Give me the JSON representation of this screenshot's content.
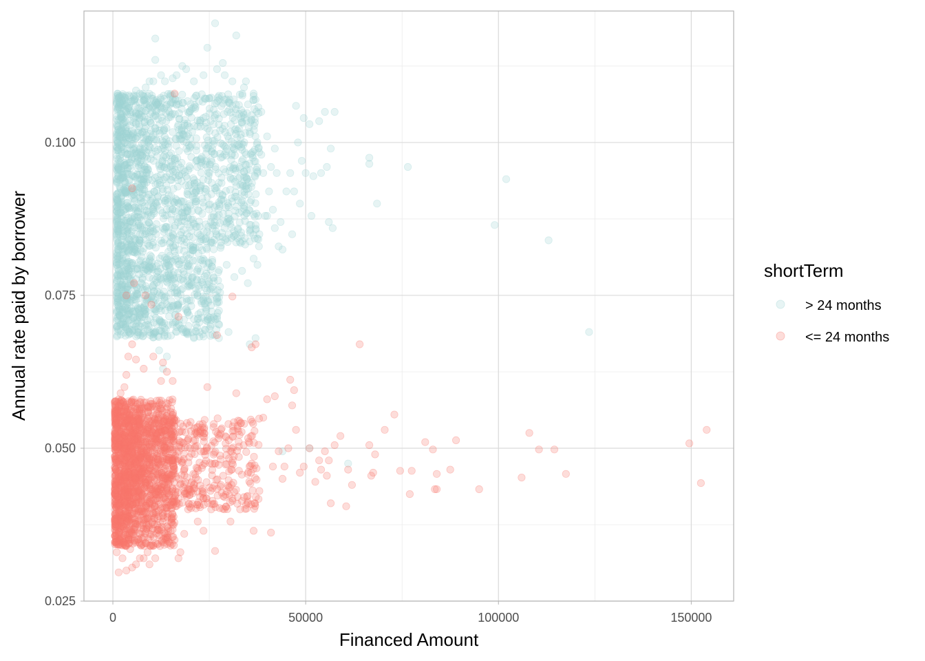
{
  "chart_data": {
    "type": "scatter",
    "xlabel": "Financed Amount",
    "ylabel": "Annual rate paid by borrower",
    "xlim": [
      -7500,
      161000
    ],
    "ylim": [
      0.025,
      0.1215
    ],
    "x_ticks": [
      0,
      50000,
      100000,
      150000
    ],
    "x_tick_labels": [
      "0",
      "50000",
      "100000",
      "150000"
    ],
    "y_ticks": [
      0.025,
      0.05,
      0.075,
      0.1
    ],
    "y_tick_labels": [
      "0.025",
      "0.050",
      "0.075",
      "0.100"
    ],
    "grid": true,
    "legend": {
      "title": "shortTerm",
      "position": "right"
    },
    "point_opacity": 0.25,
    "series": [
      {
        "name": "> 24 months",
        "color": "#9ed3d3",
        "dense_clusters": [
          {
            "x_range": [
              1000,
              38000
            ],
            "y_range": [
              0.083,
              0.108
            ]
          },
          {
            "x_range": [
              1000,
              28000
            ],
            "y_range": [
              0.068,
              0.083
            ]
          }
        ],
        "points": [
          [
            26500,
            0.1195
          ],
          [
            32000,
            0.1175
          ],
          [
            11000,
            0.117
          ],
          [
            24500,
            0.1155
          ],
          [
            28500,
            0.113
          ],
          [
            11000,
            0.1135
          ],
          [
            18000,
            0.1125
          ],
          [
            15500,
            0.1105
          ],
          [
            10500,
            0.11
          ],
          [
            31000,
            0.11
          ],
          [
            47500,
            0.106
          ],
          [
            55000,
            0.105
          ],
          [
            57500,
            0.105
          ],
          [
            53500,
            0.1035
          ],
          [
            49500,
            0.104
          ],
          [
            51000,
            0.103
          ],
          [
            48000,
            0.1
          ],
          [
            56500,
            0.099
          ],
          [
            46000,
            0.095
          ],
          [
            50000,
            0.095
          ],
          [
            49000,
            0.097
          ],
          [
            54000,
            0.095
          ],
          [
            55500,
            0.096
          ],
          [
            52000,
            0.0945
          ],
          [
            47000,
            0.092
          ],
          [
            41000,
            0.096
          ],
          [
            42500,
            0.095
          ],
          [
            45000,
            0.092
          ],
          [
            40000,
            0.088
          ],
          [
            48500,
            0.09
          ],
          [
            51500,
            0.088
          ],
          [
            56000,
            0.087
          ],
          [
            57000,
            0.086
          ],
          [
            46500,
            0.085
          ],
          [
            42000,
            0.086
          ],
          [
            43000,
            0.083
          ],
          [
            44000,
            0.0825
          ],
          [
            66500,
            0.0975
          ],
          [
            66500,
            0.0965
          ],
          [
            76500,
            0.096
          ],
          [
            68500,
            0.09
          ],
          [
            102000,
            0.094
          ],
          [
            99000,
            0.0865
          ],
          [
            113000,
            0.084
          ],
          [
            123500,
            0.069
          ],
          [
            37000,
            0.068
          ],
          [
            35500,
            0.067
          ],
          [
            30000,
            0.069
          ],
          [
            27500,
            0.068
          ],
          [
            25000,
            0.0695
          ],
          [
            22500,
            0.069
          ],
          [
            19500,
            0.069
          ],
          [
            14000,
            0.065
          ],
          [
            12000,
            0.066
          ],
          [
            13000,
            0.063
          ],
          [
            4000,
            0.078
          ],
          [
            4500,
            0.077
          ],
          [
            3500,
            0.074
          ],
          [
            4000,
            0.071
          ],
          [
            5000,
            0.07
          ],
          [
            6500,
            0.069
          ],
          [
            8000,
            0.069
          ],
          [
            9500,
            0.069
          ],
          [
            11000,
            0.069
          ],
          [
            16500,
            0.069
          ],
          [
            21000,
            0.068
          ],
          [
            25500,
            0.071
          ],
          [
            24000,
            0.073
          ],
          [
            22000,
            0.075
          ],
          [
            20500,
            0.078
          ],
          [
            26000,
            0.076
          ],
          [
            29500,
            0.08
          ],
          [
            31500,
            0.078
          ],
          [
            33500,
            0.079
          ],
          [
            35000,
            0.077
          ],
          [
            37500,
            0.08
          ],
          [
            36500,
            0.081
          ],
          [
            38000,
            0.085
          ],
          [
            39500,
            0.088
          ],
          [
            41500,
            0.089
          ],
          [
            43500,
            0.087
          ],
          [
            40500,
            0.092
          ],
          [
            39000,
            0.095
          ],
          [
            38500,
            0.098
          ],
          [
            42000,
            0.099
          ],
          [
            40000,
            0.101
          ],
          [
            38500,
            0.105
          ],
          [
            37000,
            0.107
          ],
          [
            36500,
            0.108
          ],
          [
            34000,
            0.109
          ],
          [
            34500,
            0.11
          ],
          [
            29000,
            0.111
          ],
          [
            27000,
            0.112
          ],
          [
            23500,
            0.111
          ],
          [
            21000,
            0.11
          ],
          [
            19000,
            0.112
          ],
          [
            16500,
            0.111
          ],
          [
            13500,
            0.11
          ],
          [
            12500,
            0.111
          ],
          [
            9500,
            0.11
          ],
          [
            8500,
            0.109
          ],
          [
            7000,
            0.108
          ],
          [
            6000,
            0.1085
          ],
          [
            5500,
            0.107
          ],
          [
            3500,
            0.105
          ],
          [
            2500,
            0.103
          ],
          [
            2000,
            0.101
          ],
          [
            1500,
            0.099
          ],
          [
            1500,
            0.096
          ],
          [
            2000,
            0.094
          ],
          [
            1500,
            0.09
          ],
          [
            1000,
            0.087
          ],
          [
            1500,
            0.085
          ],
          [
            2000,
            0.083
          ],
          [
            2500,
            0.081
          ],
          [
            61000,
            0.0475
          ],
          [
            44000,
            0.0495
          ],
          [
            51000,
            0.05
          ]
        ]
      },
      {
        "name": "<= 24 months",
        "color": "#f8766d",
        "dense_clusters": [
          {
            "x_range": [
              500,
              16000
            ],
            "y_range": [
              0.034,
              0.058
            ]
          },
          {
            "x_range": [
              3000,
              38000
            ],
            "y_range": [
              0.04,
              0.055
            ]
          }
        ],
        "points": [
          [
            154000,
            0.053
          ],
          [
            149500,
            0.0508
          ],
          [
            152500,
            0.0443
          ],
          [
            117500,
            0.0458
          ],
          [
            114500,
            0.0498
          ],
          [
            110500,
            0.0498
          ],
          [
            108000,
            0.0525
          ],
          [
            106000,
            0.0452
          ],
          [
            95000,
            0.0433
          ],
          [
            89000,
            0.0513
          ],
          [
            87500,
            0.0465
          ],
          [
            84000,
            0.0458
          ],
          [
            84000,
            0.0433
          ],
          [
            83500,
            0.0433
          ],
          [
            83000,
            0.0498
          ],
          [
            81000,
            0.051
          ],
          [
            77500,
            0.0463
          ],
          [
            77000,
            0.0425
          ],
          [
            74500,
            0.0463
          ],
          [
            73000,
            0.0555
          ],
          [
            70500,
            0.053
          ],
          [
            68000,
            0.049
          ],
          [
            67500,
            0.046
          ],
          [
            67000,
            0.0455
          ],
          [
            66500,
            0.0505
          ],
          [
            64000,
            0.067
          ],
          [
            62000,
            0.044
          ],
          [
            61000,
            0.0465
          ],
          [
            60500,
            0.0405
          ],
          [
            59000,
            0.052
          ],
          [
            57500,
            0.0505
          ],
          [
            56500,
            0.041
          ],
          [
            56000,
            0.048
          ],
          [
            55500,
            0.0455
          ],
          [
            55000,
            0.0495
          ],
          [
            54000,
            0.0465
          ],
          [
            53500,
            0.048
          ],
          [
            52500,
            0.0445
          ],
          [
            51000,
            0.05
          ],
          [
            49500,
            0.047
          ],
          [
            48500,
            0.046
          ],
          [
            47500,
            0.053
          ],
          [
            47000,
            0.0595
          ],
          [
            46500,
            0.057
          ],
          [
            46000,
            0.0612
          ],
          [
            45500,
            0.05
          ],
          [
            44500,
            0.047
          ],
          [
            44000,
            0.045
          ],
          [
            43000,
            0.0495
          ],
          [
            42000,
            0.0585
          ],
          [
            41000,
            0.0362
          ],
          [
            41500,
            0.047
          ],
          [
            40000,
            0.058
          ],
          [
            39000,
            0.055
          ],
          [
            38000,
            0.043
          ],
          [
            37000,
            0.067
          ],
          [
            36000,
            0.0665
          ],
          [
            36500,
            0.0365
          ],
          [
            35000,
            0.041
          ],
          [
            34000,
            0.042
          ],
          [
            33000,
            0.04
          ],
          [
            32000,
            0.059
          ],
          [
            31000,
            0.0748
          ],
          [
            30500,
            0.038
          ],
          [
            29000,
            0.042
          ],
          [
            28000,
            0.044
          ],
          [
            27000,
            0.0685
          ],
          [
            26500,
            0.0332
          ],
          [
            25500,
            0.04
          ],
          [
            24500,
            0.06
          ],
          [
            23500,
            0.0365
          ],
          [
            22000,
            0.038
          ],
          [
            21000,
            0.044
          ],
          [
            20000,
            0.05
          ],
          [
            19500,
            0.04
          ],
          [
            18500,
            0.036
          ],
          [
            17500,
            0.033
          ],
          [
            17000,
            0.032
          ],
          [
            16000,
            0.035
          ],
          [
            15500,
            0.061
          ],
          [
            14000,
            0.0625
          ],
          [
            13000,
            0.064
          ],
          [
            11000,
            0.032
          ],
          [
            10000,
            0.034
          ],
          [
            9500,
            0.031
          ],
          [
            9000,
            0.033
          ],
          [
            8000,
            0.032
          ],
          [
            7000,
            0.032
          ],
          [
            6000,
            0.031
          ],
          [
            5000,
            0.0305
          ],
          [
            4500,
            0.0335
          ],
          [
            3500,
            0.03
          ],
          [
            2500,
            0.032
          ],
          [
            1500,
            0.0297
          ],
          [
            1000,
            0.033
          ],
          [
            1000,
            0.036
          ],
          [
            500,
            0.038
          ],
          [
            1500,
            0.054
          ],
          [
            2000,
            0.059
          ],
          [
            3000,
            0.06
          ],
          [
            3500,
            0.062
          ],
          [
            4000,
            0.065
          ],
          [
            5000,
            0.067
          ],
          [
            6000,
            0.0645
          ],
          [
            8000,
            0.063
          ],
          [
            10500,
            0.065
          ],
          [
            12500,
            0.061
          ],
          [
            3500,
            0.075
          ],
          [
            5500,
            0.077
          ],
          [
            8500,
            0.075
          ],
          [
            10000,
            0.0735
          ],
          [
            17000,
            0.0715
          ],
          [
            16000,
            0.108
          ],
          [
            5000,
            0.0925
          ]
        ]
      }
    ]
  }
}
